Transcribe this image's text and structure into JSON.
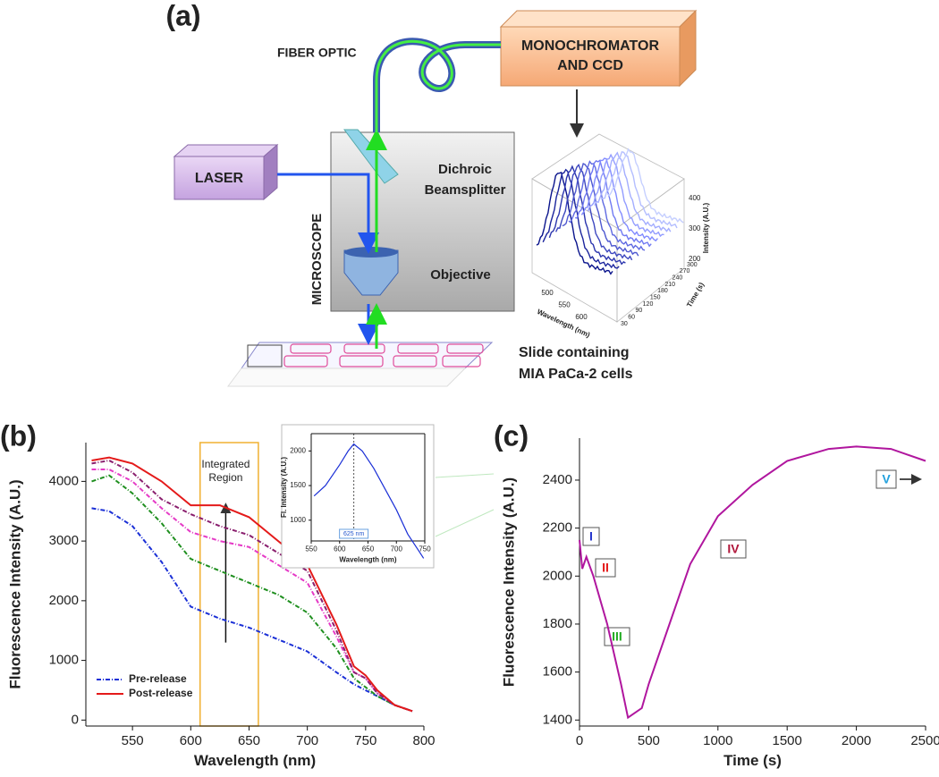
{
  "diagram": {
    "panel_label": "(a)",
    "fiber_optic": "FIBER OPTIC",
    "monochromator": [
      "MONOCHROMATOR",
      "AND CCD"
    ],
    "laser": "LASER",
    "microscope": "MICROSCOPE",
    "beamsplitter": [
      "Dichroic",
      "Beamsplitter"
    ],
    "objective": "Objective",
    "slide": [
      "Slide containing",
      "MIA PaCa-2 cells"
    ],
    "spectra_plot": {
      "intensity_label": "Intensity (A.U.)",
      "wavelength_label": "Wavelength (nm)",
      "time_label": "Time (s)",
      "intensity_ticks": [
        200,
        300,
        400
      ],
      "wavelength_ticks": [
        500,
        550,
        600
      ],
      "time_ticks": [
        30,
        60,
        90,
        120,
        150,
        180,
        210,
        240,
        270,
        300
      ]
    }
  },
  "chart_data": [
    {
      "type": "line",
      "panel_label": "(b)",
      "xlabel": "Wavelength (nm)",
      "ylabel": "Fluorescence Intensity (A.U.)",
      "x": [
        515,
        530,
        550,
        575,
        600,
        625,
        650,
        675,
        700,
        725,
        740,
        750,
        760,
        775,
        790
      ],
      "xlim": [
        510,
        800
      ],
      "xticks": [
        550,
        600,
        650,
        700,
        750,
        800
      ],
      "ylim": [
        -100,
        4650
      ],
      "yticks": [
        0,
        1000,
        2000,
        3000,
        4000
      ],
      "integrated_region": [
        608,
        658
      ],
      "region_label": [
        "Integrated",
        "Region"
      ],
      "arrow": [
        1300,
        3600
      ],
      "arrow_x": 630,
      "legend": "bottom-left",
      "series": [
        {
          "name": "Pre-release",
          "color": "#1a2fd6",
          "dashed": true,
          "values": [
            3550,
            3500,
            3250,
            2650,
            1900,
            1700,
            1550,
            1350,
            1150,
            800,
            600,
            500,
            400,
            250,
            150
          ]
        },
        {
          "color": "#1f8f1f",
          "dashed": true,
          "values": [
            4000,
            4100,
            3800,
            3300,
            2700,
            2500,
            2300,
            2100,
            1800,
            1200,
            700,
            550,
            400,
            250,
            150
          ]
        },
        {
          "color": "#e53ac6",
          "dashed": true,
          "values": [
            4200,
            4200,
            4000,
            3550,
            3150,
            3000,
            2900,
            2600,
            2300,
            1400,
            800,
            700,
            450,
            250,
            150
          ]
        },
        {
          "color": "#8a1f6e",
          "dashed": true,
          "values": [
            4300,
            4350,
            4150,
            3700,
            3450,
            3250,
            3100,
            2800,
            2500,
            1500,
            800,
            700,
            450,
            250,
            150
          ]
        },
        {
          "name": "Post-release",
          "color": "#e41a1a",
          "dashed": false,
          "values": [
            4350,
            4400,
            4300,
            4000,
            3600,
            3600,
            3400,
            3000,
            2600,
            1600,
            900,
            750,
            500,
            250,
            150
          ]
        }
      ]
    },
    {
      "type": "line",
      "xlabel": "Wavelength (nm)",
      "ylabel": "Fl. Intensity (A.U.)",
      "x": [
        555,
        575,
        600,
        615,
        625,
        640,
        660,
        680,
        700,
        720,
        740,
        748
      ],
      "xlim": [
        550,
        750
      ],
      "xticks": [
        550,
        600,
        650,
        700,
        750
      ],
      "ylim": [
        700,
        2250
      ],
      "yticks": [
        1000,
        1500,
        2000
      ],
      "marker_x": 625,
      "marker_label": "625 nm",
      "series": [
        {
          "color": "#1a2fd6",
          "dashed": false,
          "values": [
            1350,
            1500,
            1800,
            2000,
            2100,
            2000,
            1750,
            1450,
            1150,
            800,
            550,
            450
          ]
        }
      ]
    },
    {
      "type": "line",
      "panel_label": "(c)",
      "xlabel": "Time (s)",
      "ylabel": "Fluorescence Intensity (A.U.)",
      "x": [
        0,
        20,
        50,
        100,
        200,
        300,
        350,
        450,
        500,
        650,
        800,
        1000,
        1250,
        1500,
        1800,
        2000,
        2250,
        2500
      ],
      "xlim": [
        0,
        2500
      ],
      "xticks": [
        0,
        500,
        1000,
        1500,
        2000,
        2500
      ],
      "ylim": [
        1375,
        2575
      ],
      "yticks": [
        1400,
        1600,
        1800,
        2000,
        2200,
        2400
      ],
      "phase_labels": [
        "I",
        "II",
        "III",
        "IV",
        "V"
      ],
      "series": [
        {
          "color": "#b0169e",
          "dashed": false,
          "values": [
            2150,
            2030,
            2080,
            2000,
            1800,
            1550,
            1410,
            1450,
            1550,
            1800,
            2050,
            2250,
            2380,
            2480,
            2530,
            2540,
            2530,
            2480
          ]
        }
      ]
    }
  ]
}
